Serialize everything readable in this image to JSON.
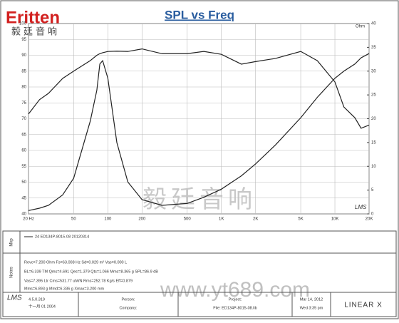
{
  "header": {
    "logo": "Eritten",
    "logo_sub": "毅廷音响"
  },
  "chart_data": {
    "type": "line",
    "title": "SPL vs Freq",
    "y2_label": "Ohm",
    "badge": "LMS",
    "log_x": true,
    "grid": true,
    "xlim": [
      20,
      20000
    ],
    "xticks": [
      {
        "value": 20,
        "label": "20 Hz"
      },
      50,
      100,
      200,
      500,
      {
        "value": 1000,
        "label": "1K"
      },
      {
        "value": 2000,
        "label": "2K"
      },
      {
        "value": 5000,
        "label": "5K"
      },
      {
        "value": 10000,
        "label": "10K"
      },
      {
        "value": 20000,
        "label": "20K"
      }
    ],
    "ylim": [
      40,
      100
    ],
    "yticks": [
      40,
      45,
      50,
      55,
      60,
      65,
      70,
      75,
      80,
      85,
      90,
      95,
      100
    ],
    "y2lim": [
      0,
      40
    ],
    "y2ticks": [
      0,
      5,
      10,
      15,
      20,
      25,
      30,
      35,
      40
    ],
    "x": [
      20,
      25,
      30,
      40,
      50,
      70,
      80,
      85,
      90,
      100,
      120,
      150,
      200,
      300,
      500,
      700,
      1000,
      1500,
      2000,
      3000,
      5000,
      7000,
      10000,
      12000,
      15000,
      17000,
      20000
    ],
    "series": [
      {
        "color": "#222222",
        "values": [
          71.5,
          76,
          78,
          82.7,
          85,
          88.3,
          90,
          90.5,
          90.8,
          91.2,
          91.3,
          91.2,
          92,
          90.5,
          90.5,
          91.2,
          90.3,
          87.2,
          88,
          89,
          91.2,
          88.3,
          81.6,
          73.7,
          70.3,
          67,
          68
        ]
      },
      {
        "color": "#222222",
        "axis": "y2",
        "values": [
          0.7,
          1.2,
          1.8,
          4,
          7.5,
          19.5,
          26,
          31.5,
          32.2,
          28.5,
          15,
          6.7,
          3,
          1.8,
          2.2,
          3.5,
          5.2,
          8,
          10.5,
          14.5,
          20.2,
          24.5,
          28.5,
          30,
          31.5,
          32.8,
          33.7
        ]
      }
    ]
  },
  "watermark": {
    "cn": "毅廷音响",
    "url": "www.yt689.com"
  },
  "footer": {
    "mic_label": "Mkp",
    "legend_text": "24  ED134P-8015-08 20120314",
    "notes_label": "Notes",
    "notes": [
      "Revc=7.200 Ohm  Fs=63.008 Hz  Sd=0.029 m²  Vas=0.000 L",
      "BL=6.339 TM  Qms=4.691  Qes=1.379  Qts=1.066  Mms=8.365 g  SPL=86.9 dB",
      "Vas=7.395 Ltr  Cms=531.77 uM/N  Rms=252.78 Kg/s  Eff=0.879",
      "Mms=6.893 g  Mmd=6.336 g  Xmax=3.200 mm"
    ],
    "version": "4.5.0.319",
    "version_date": "十一月 01 2004",
    "person": "Person:",
    "company": "Company:",
    "project": "Project:",
    "file": "File: ED134P-8015-08.lib",
    "date": "Mar 14, 2012",
    "time": "Wed 3:35 pm",
    "brand": "LINEAR X"
  }
}
